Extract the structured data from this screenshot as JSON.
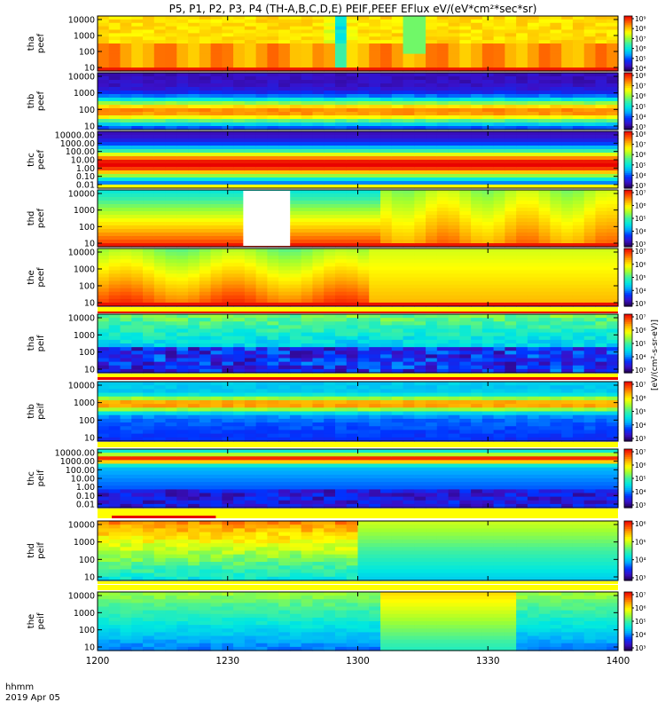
{
  "title": "P5, P1, P2, P3, P4 (TH-A,B,C,D,E) PEIF,PEEF EFlux eV/(eV*cm²*sec*sr)",
  "footer": {
    "time_label": "hhmm",
    "date_label": "2019 Apr 05"
  },
  "chart_data": {
    "type": "heatmap",
    "title": "P5, P1, P2, P3, P4 (TH-A,B,C,D,E) PEIF,PEEF EFlux eV/(eV*cm²*sec*sr)",
    "x_tick_labels": [
      "1200",
      "1230",
      "1300",
      "1330",
      "1400"
    ],
    "x_range": [
      "12:00",
      "14:00"
    ],
    "colorbar_unit_label": "[eV/(cm²-s-sr-eV)]",
    "colormap": [
      "#20004a",
      "#3a10c8",
      "#0033ff",
      "#00aaff",
      "#00e8e0",
      "#40f0a0",
      "#a0ff30",
      "#ffff00",
      "#ffb000",
      "#ff5000",
      "#e80000"
    ],
    "panels": [
      {
        "id": "tha-peef",
        "ylabel": [
          "tha",
          "peef"
        ],
        "y_ticks": [
          "10",
          "100",
          "1000",
          "10000"
        ],
        "colorbar_ticks": [
          "10⁴",
          "10⁵",
          "10⁶",
          "10⁷",
          "10⁸",
          "10⁹"
        ],
        "pattern": "tha_e"
      },
      {
        "id": "thb-peef",
        "ylabel": [
          "thb",
          "peef"
        ],
        "y_ticks": [
          "10",
          "100",
          "1000",
          "10000"
        ],
        "colorbar_ticks": [
          "10³",
          "10⁴",
          "10⁵",
          "10⁶",
          "10⁷",
          "10⁸"
        ],
        "pattern": "thb_e"
      },
      {
        "id": "thc-peef",
        "ylabel": [
          "thc",
          "peef"
        ],
        "y_ticks": [
          "0.01",
          "0.10",
          "1.00",
          "10.00",
          "100.00",
          "1000.00",
          "10000.00"
        ],
        "colorbar_ticks": [
          "10³",
          "10⁴",
          "10⁵",
          "10⁶",
          "10⁷",
          "10⁸"
        ],
        "pattern": "thc_e"
      },
      {
        "id": "thd-peef",
        "ylabel": [
          "thd",
          "peef"
        ],
        "y_ticks": [
          "10",
          "100",
          "1000",
          "10000"
        ],
        "colorbar_ticks": [
          "10³",
          "10⁴",
          "10⁵",
          "10⁶",
          "10⁷"
        ],
        "pattern": "thd_e"
      },
      {
        "id": "the-peef",
        "ylabel": [
          "the",
          "peef"
        ],
        "y_ticks": [
          "10",
          "100",
          "1000",
          "10000"
        ],
        "colorbar_ticks": [
          "10³",
          "10⁴",
          "10⁵",
          "10⁶",
          "10⁷"
        ],
        "pattern": "the_e"
      },
      {
        "id": "tha-peif",
        "ylabel": [
          "tha",
          "peif"
        ],
        "y_ticks": [
          "10",
          "100",
          "1000",
          "10000"
        ],
        "colorbar_ticks": [
          "10³",
          "10⁴",
          "10⁵",
          "10⁶",
          "10⁷"
        ],
        "pattern": "tha_i"
      },
      {
        "id": "thb-peif",
        "ylabel": [
          "thb",
          "peif"
        ],
        "y_ticks": [
          "10",
          "100",
          "1000",
          "10000"
        ],
        "colorbar_ticks": [
          "10³",
          "10⁴",
          "10⁵",
          "10⁶",
          "10⁷"
        ],
        "pattern": "thb_i"
      },
      {
        "id": "thc-peif",
        "ylabel": [
          "thc",
          "peif"
        ],
        "y_ticks": [
          "0.01",
          "0.10",
          "1.00",
          "10.00",
          "100.00",
          "1000.00",
          "10000.00"
        ],
        "colorbar_ticks": [
          "10³",
          "10⁴",
          "10⁵",
          "10⁶",
          "10⁷"
        ],
        "pattern": "thc_i"
      },
      {
        "id": "thd-peif",
        "ylabel": [
          "thd",
          "peif"
        ],
        "y_ticks": [
          "10",
          "100",
          "1000",
          "10000"
        ],
        "colorbar_ticks": [
          "10³",
          "10⁴",
          "10⁵",
          "10⁶"
        ],
        "pattern": "thd_i"
      },
      {
        "id": "the-peif",
        "ylabel": [
          "the",
          "peif"
        ],
        "y_ticks": [
          "10",
          "100",
          "1000",
          "10000"
        ],
        "colorbar_ticks": [
          "10³",
          "10⁴",
          "10⁵",
          "10⁶",
          "10⁷"
        ],
        "pattern": "the_i"
      }
    ]
  }
}
